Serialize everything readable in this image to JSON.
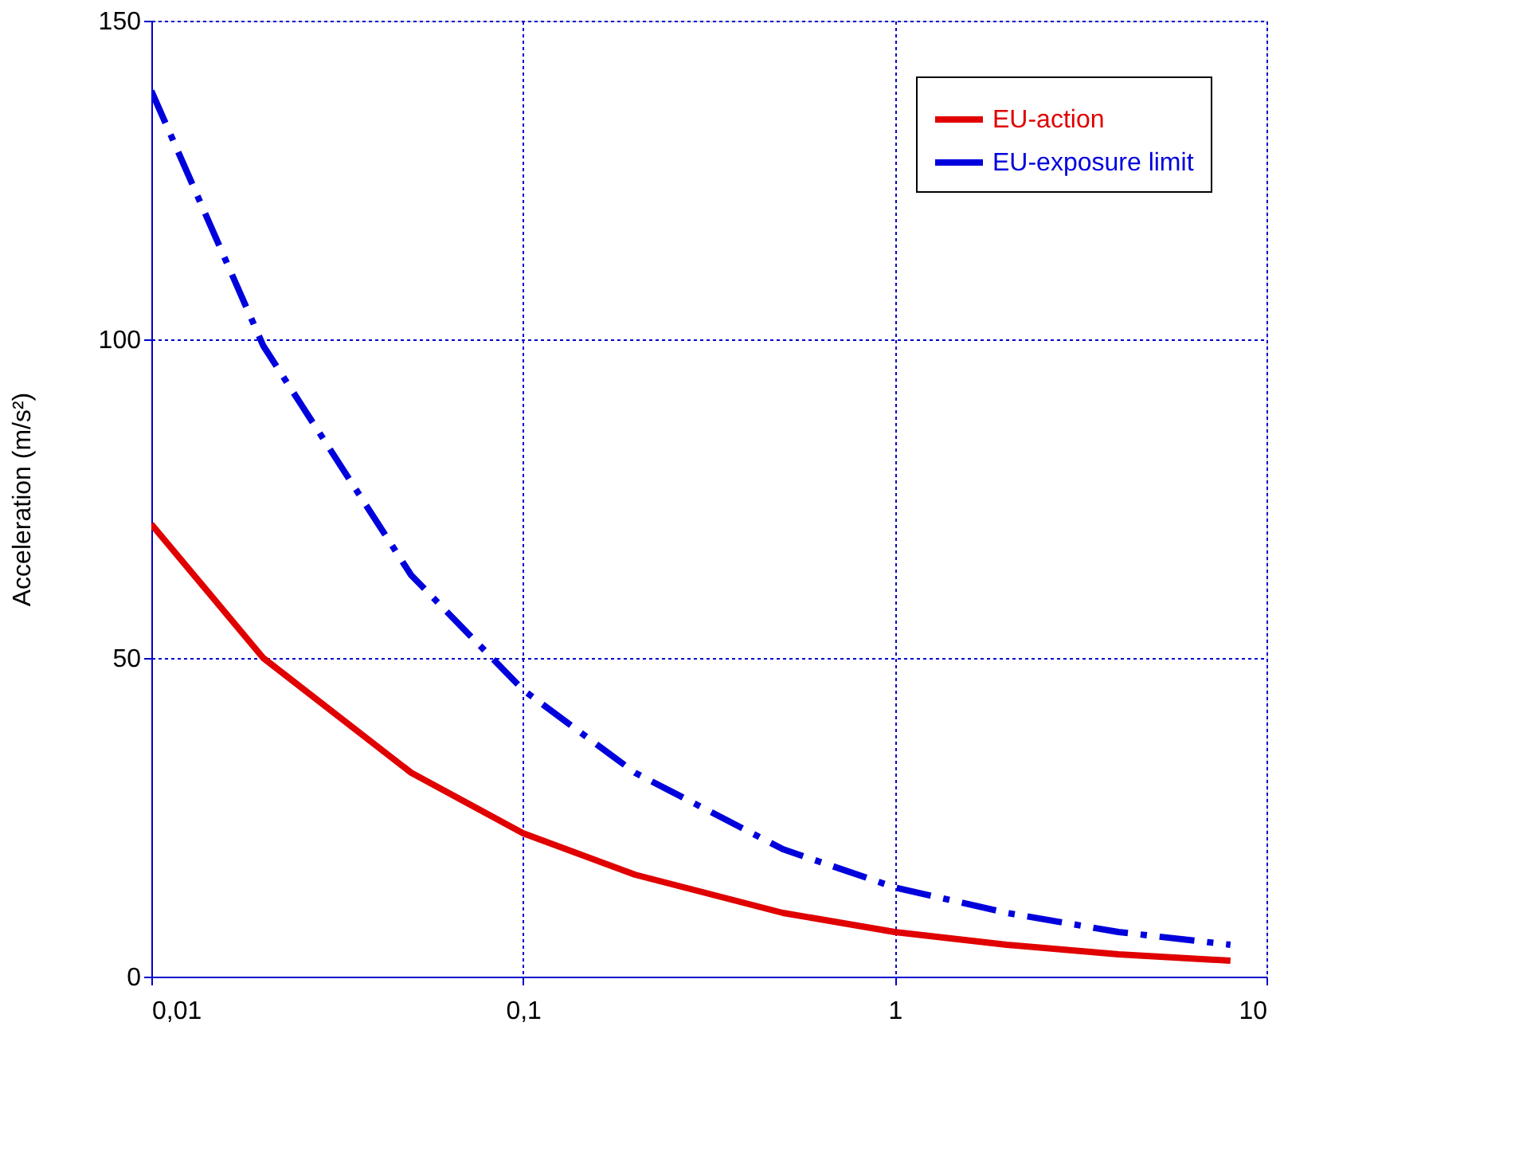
{
  "chart_data": {
    "type": "line",
    "ylabel": "Acceleration (m/s²)",
    "x": [
      0.01,
      0.02,
      0.05,
      0.1,
      0.2,
      0.5,
      1,
      2,
      4,
      8
    ],
    "series": [
      {
        "name": "EU-action",
        "color": "#e00000",
        "line_style": "solid",
        "values": [
          71,
          50,
          32,
          22.5,
          16,
          10,
          7,
          5,
          3.5,
          2.5
        ]
      },
      {
        "name": "EU-exposure limit",
        "color": "#0000dd",
        "line_style": "dashed",
        "values": [
          139,
          99,
          63,
          45,
          32,
          20,
          14,
          10,
          7,
          5
        ]
      }
    ],
    "log": "x",
    "xlim": [
      0.01,
      10
    ],
    "ylim": [
      0,
      150
    ],
    "xticks": [
      {
        "value": 0.01,
        "label": "0,01"
      },
      {
        "value": 0.1,
        "label": "0,1"
      },
      1,
      10
    ],
    "yticks": [
      0,
      50,
      100,
      150
    ],
    "grid": true,
    "legend": "top right",
    "marker": "none"
  }
}
